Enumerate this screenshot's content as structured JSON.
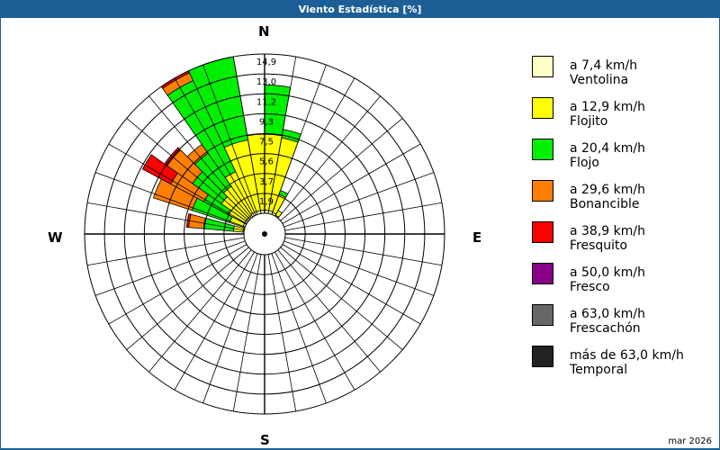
{
  "window": {
    "title": "Viento Estadística [%]"
  },
  "compass": {
    "n": "N",
    "e": "E",
    "s": "S",
    "w": "W"
  },
  "footer": {
    "date": "mar 2026"
  },
  "legend": [
    {
      "range": "a 7,4 km/h",
      "name": "Ventolina",
      "color": "#ffffc8"
    },
    {
      "range": "a 12,9 km/h",
      "name": "Flojito",
      "color": "#ffff00"
    },
    {
      "range": "a 20,4 km/h",
      "name": "Flojo",
      "color": "#00ee00"
    },
    {
      "range": "a 29,6 km/h",
      "name": "Bonancible",
      "color": "#ff8000"
    },
    {
      "range": "a 38,9 km/h",
      "name": "Fresquito",
      "color": "#ff0000"
    },
    {
      "range": "a 50,0 km/h",
      "name": "Fresco",
      "color": "#880088"
    },
    {
      "range": "a 63,0 km/h",
      "name": "Frescachón",
      "color": "#666666"
    },
    {
      "range": "más de 63,0 km/h",
      "name": "Temporal",
      "color": "#222222"
    }
  ],
  "chart_data": {
    "type": "wind-rose",
    "title": "Viento Estadística [%]",
    "unit": "%",
    "ring_labels": [
      "1,9",
      "3,7",
      "5,6",
      "7,5",
      "9,3",
      "11,2",
      "13,0",
      "14,9"
    ],
    "rmax": 14.9,
    "grid": {
      "rings": 8,
      "spokes_deg": 10
    },
    "series_order": [
      "Ventolina",
      "Flojito",
      "Flojo",
      "Bonancible",
      "Fresquito",
      "Fresco",
      "Frescachón",
      "Temporal"
    ],
    "sectors": [
      {
        "from": 0,
        "to": 10,
        "cumulative": [
          0.3,
          7.4,
          12.0,
          12.0,
          12.0
        ]
      },
      {
        "from": 10,
        "to": 20,
        "cumulative": [
          0.3,
          7.2,
          8.0,
          8.0,
          8.0
        ]
      },
      {
        "from": 20,
        "to": 30,
        "cumulative": [
          0.2,
          2.0,
          2.4,
          2.4,
          2.4
        ]
      },
      {
        "from": 30,
        "to": 40,
        "cumulative": [
          0.1,
          0.6,
          0.6,
          0.6,
          0.6
        ]
      },
      {
        "from": -10,
        "to": 0,
        "cumulative": [
          0.3,
          7.4,
          7.4,
          7.4,
          7.4
        ]
      },
      {
        "from": -25,
        "to": -10,
        "cumulative": [
          0.3,
          7.0,
          14.9,
          14.9,
          14.9
        ]
      },
      {
        "from": -35,
        "to": -25,
        "cumulative": [
          0.3,
          4.5,
          13.9,
          14.7,
          14.9
        ]
      },
      {
        "from": -45,
        "to": -35,
        "cumulative": [
          0.2,
          3.5,
          7.3,
          8.3,
          8.3
        ]
      },
      {
        "from": -55,
        "to": -45,
        "cumulative": [
          0.2,
          3.0,
          6.3,
          9.2,
          9.5
        ]
      },
      {
        "from": -62,
        "to": -55,
        "cumulative": [
          0.2,
          2.0,
          4.5,
          8.0,
          11.0
        ]
      },
      {
        "from": -72,
        "to": -62,
        "cumulative": [
          0.2,
          1.5,
          5.2,
          9.0,
          9.0
        ]
      },
      {
        "from": -85,
        "to": -75,
        "cumulative": [
          0.1,
          1.0,
          3.8,
          5.2,
          5.4
        ]
      }
    ]
  }
}
